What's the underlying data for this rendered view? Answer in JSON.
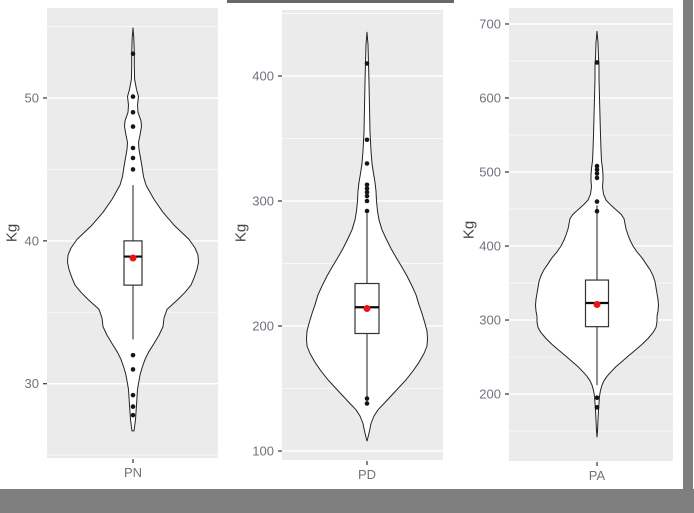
{
  "style": {
    "page_bg": "#ffffff",
    "panel_bg": "#ebebeb",
    "grid_color": "#ffffff",
    "tick_text_color": "#6e747c",
    "axis_title_color": "#43474d",
    "violin_stroke": "#232323",
    "box_stroke": "#333333",
    "box_fill": "#ffffff",
    "median_color": "#0a0a0a",
    "point_color": "#161616",
    "mean_point_color": "#ee1414",
    "shadow_gray": "#7f7f7f",
    "top_border_gray": "#696969"
  },
  "chart_data": [
    {
      "type": "violin",
      "category": "PN",
      "ylabel": "Kg",
      "ylim": [
        24.8,
        56.3
      ],
      "yticks_major": [
        30,
        40,
        50
      ],
      "yticks_minor": [
        25,
        35,
        45,
        55
      ],
      "grid": true,
      "box": {
        "q1": 36.9,
        "median": 38.9,
        "q3": 40.0,
        "mean": 38.8,
        "whisker_low": 33.1,
        "whisker_high": 43.9
      },
      "points": [
        53.1,
        50.1,
        49.0,
        48.0,
        46.5,
        45.8,
        45.0,
        32.0,
        31.0,
        29.2,
        28.4,
        27.8
      ],
      "violin_profile": [
        [
          54.9,
          0
        ],
        [
          54.2,
          0.8
        ],
        [
          53.1,
          1.3
        ],
        [
          52.2,
          1.3
        ],
        [
          51.3,
          1.6
        ],
        [
          50.6,
          3.5
        ],
        [
          50.1,
          5.5
        ],
        [
          49.5,
          4.5
        ],
        [
          49.0,
          5.0
        ],
        [
          48.4,
          8.0
        ],
        [
          48.0,
          8.5
        ],
        [
          47.4,
          7.0
        ],
        [
          46.9,
          5.5
        ],
        [
          46.4,
          6.0
        ],
        [
          45.8,
          7.5
        ],
        [
          45.2,
          9.0
        ],
        [
          44.5,
          10.5
        ],
        [
          43.9,
          13.0
        ],
        [
          42.9,
          21.0
        ],
        [
          42.0,
          30.0
        ],
        [
          41.1,
          41.0
        ],
        [
          40.1,
          56.0
        ],
        [
          39.5,
          62.0
        ],
        [
          39.0,
          65.0
        ],
        [
          38.5,
          65.5
        ],
        [
          38.0,
          64.0
        ],
        [
          37.4,
          61.0
        ],
        [
          36.9,
          58.0
        ],
        [
          36.4,
          52.0
        ],
        [
          35.9,
          45.0
        ],
        [
          35.2,
          34.0
        ],
        [
          34.6,
          31.0
        ],
        [
          34.0,
          30.0
        ],
        [
          33.4,
          26.0
        ],
        [
          32.7,
          20.0
        ],
        [
          32.2,
          15.5
        ],
        [
          31.7,
          12.0
        ],
        [
          31.1,
          9.0
        ],
        [
          30.6,
          7.0
        ],
        [
          29.6,
          4.5
        ],
        [
          28.5,
          3.5
        ],
        [
          27.5,
          2.5
        ],
        [
          26.7,
          1.0
        ]
      ]
    },
    {
      "type": "violin",
      "category": "PD",
      "ylabel": "Kg",
      "ylim": [
        92.8,
        452.8
      ],
      "yticks_major": [
        100,
        200,
        300,
        400
      ],
      "yticks_minor": [
        150,
        250,
        350,
        450
      ],
      "grid": true,
      "box": {
        "q1": 194,
        "median": 215,
        "q3": 234,
        "mean": 214,
        "whisker_low": 138,
        "whisker_high": 290
      },
      "points": [
        410,
        349,
        330,
        313,
        310,
        307,
        304,
        300,
        292,
        142,
        138
      ],
      "violin_profile": [
        [
          435,
          0
        ],
        [
          425,
          1
        ],
        [
          410,
          1.5
        ],
        [
          395,
          2
        ],
        [
          375,
          2.5
        ],
        [
          355,
          3
        ],
        [
          348,
          3.5
        ],
        [
          340,
          4
        ],
        [
          330,
          5
        ],
        [
          322,
          6.5
        ],
        [
          315,
          8
        ],
        [
          308,
          9
        ],
        [
          300,
          9.5
        ],
        [
          292,
          10.5
        ],
        [
          285,
          12
        ],
        [
          277,
          15
        ],
        [
          270,
          19
        ],
        [
          262,
          24
        ],
        [
          255,
          29
        ],
        [
          247,
          35
        ],
        [
          240,
          40
        ],
        [
          232,
          45
        ],
        [
          225,
          49
        ],
        [
          217,
          52
        ],
        [
          210,
          55
        ],
        [
          202,
          58
        ],
        [
          196,
          60
        ],
        [
          190,
          60.5
        ],
        [
          184,
          60
        ],
        [
          178,
          57
        ],
        [
          171,
          52
        ],
        [
          164,
          46
        ],
        [
          157,
          39
        ],
        [
          150,
          31
        ],
        [
          144,
          24
        ],
        [
          138,
          17
        ],
        [
          133,
          11
        ],
        [
          128,
          7
        ],
        [
          122,
          4
        ],
        [
          116,
          2.5
        ],
        [
          111,
          1
        ],
        [
          108,
          0
        ]
      ]
    },
    {
      "type": "violin",
      "category": "PA",
      "ylabel": "Kg",
      "ylim": [
        109.5,
        721.6
      ],
      "yticks_major": [
        200,
        300,
        400,
        500,
        600,
        700
      ],
      "yticks_minor": [
        150,
        250,
        350,
        450,
        550,
        650
      ],
      "grid": true,
      "box": {
        "q1": 291,
        "median": 323,
        "q3": 354,
        "mean": 321,
        "whisker_low": 212,
        "whisker_high": 455
      },
      "points": [
        648,
        508,
        503,
        498,
        492,
        460,
        447,
        195,
        182
      ],
      "violin_profile": [
        [
          690,
          0
        ],
        [
          675,
          1
        ],
        [
          655,
          1.5
        ],
        [
          645,
          2
        ],
        [
          625,
          2
        ],
        [
          600,
          2.5
        ],
        [
          575,
          3
        ],
        [
          550,
          3.5
        ],
        [
          530,
          4
        ],
        [
          515,
          4.5
        ],
        [
          505,
          5.5
        ],
        [
          496,
          6
        ],
        [
          488,
          6
        ],
        [
          480,
          5.5
        ],
        [
          470,
          6.5
        ],
        [
          462,
          9
        ],
        [
          455,
          14
        ],
        [
          449,
          19
        ],
        [
          443,
          24
        ],
        [
          437,
          27
        ],
        [
          430,
          28
        ],
        [
          423,
          29
        ],
        [
          415,
          31
        ],
        [
          408,
          33
        ],
        [
          400,
          36
        ],
        [
          392,
          40
        ],
        [
          384,
          45
        ],
        [
          376,
          49
        ],
        [
          368,
          53
        ],
        [
          360,
          56
        ],
        [
          352,
          58
        ],
        [
          344,
          59
        ],
        [
          336,
          60
        ],
        [
          328,
          61
        ],
        [
          320,
          61.5
        ],
        [
          312,
          61
        ],
        [
          305,
          60
        ],
        [
          298,
          60
        ],
        [
          290,
          59
        ],
        [
          283,
          56
        ],
        [
          275,
          51
        ],
        [
          267,
          45
        ],
        [
          259,
          38
        ],
        [
          251,
          31
        ],
        [
          244,
          25
        ],
        [
          237,
          19
        ],
        [
          230,
          14
        ],
        [
          224,
          10
        ],
        [
          218,
          7
        ],
        [
          212,
          5
        ],
        [
          205,
          3.5
        ],
        [
          197,
          2.5
        ],
        [
          188,
          2
        ],
        [
          178,
          1.5
        ],
        [
          165,
          1
        ],
        [
          150,
          0.5
        ],
        [
          142,
          0
        ]
      ]
    }
  ]
}
